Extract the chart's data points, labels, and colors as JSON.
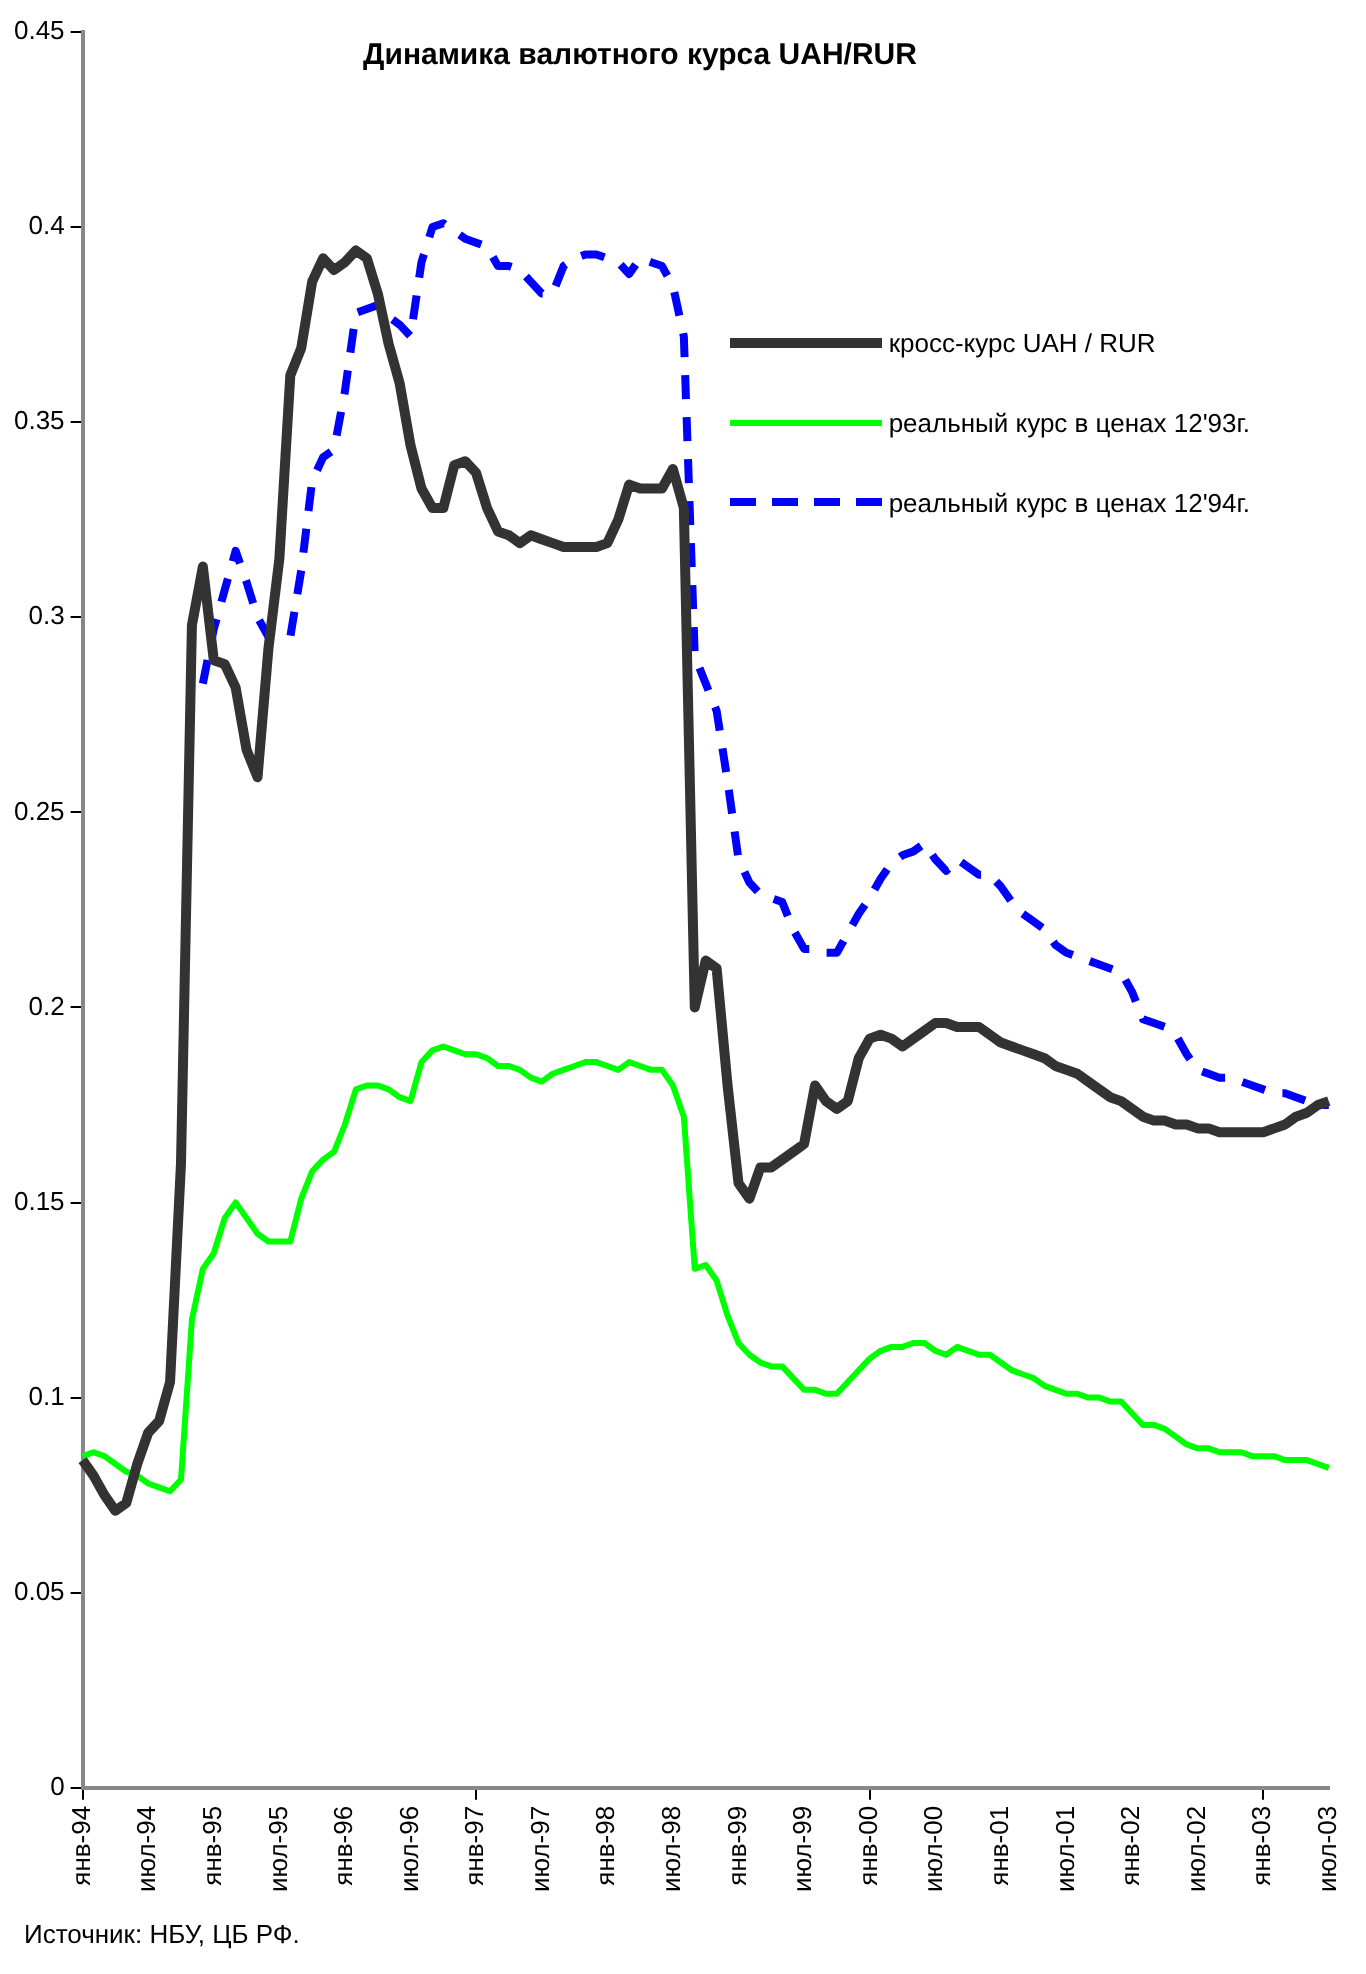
{
  "chart_data": {
    "type": "line",
    "title": "Динамика валютного курса UAH/RUR",
    "categories": [
      "янв-94",
      null,
      null,
      null,
      null,
      null,
      "июл-94",
      null,
      null,
      null,
      null,
      null,
      "янв-95",
      null,
      null,
      null,
      null,
      null,
      "июл-95",
      null,
      null,
      null,
      null,
      null,
      "янв-96",
      null,
      null,
      null,
      null,
      null,
      "июл-96",
      null,
      null,
      null,
      null,
      null,
      "янв-97",
      null,
      null,
      null,
      null,
      null,
      "июл-97",
      null,
      null,
      null,
      null,
      null,
      "янв-98",
      null,
      null,
      null,
      null,
      null,
      "июл-98",
      null,
      null,
      null,
      null,
      null,
      "янв-99",
      null,
      null,
      null,
      null,
      null,
      "июл-99",
      null,
      null,
      null,
      null,
      null,
      "янв-00",
      null,
      null,
      null,
      null,
      null,
      "июл-00",
      null,
      null,
      null,
      null,
      null,
      "янв-01",
      null,
      null,
      null,
      null,
      null,
      "июл-01",
      null,
      null,
      null,
      null,
      null,
      "янв-02",
      null,
      null,
      null,
      null,
      null,
      "июл-02",
      null,
      null,
      null,
      null,
      null,
      "янв-03",
      null,
      null,
      null,
      null,
      null,
      "июл-03"
    ],
    "series": [
      {
        "name": "кросс-курс UAH / RUR",
        "color": "#333333",
        "line_style": "solid",
        "values": [
          0.084,
          0.08,
          0.075,
          0.071,
          0.073,
          0.083,
          0.091,
          0.094,
          0.104,
          0.16,
          0.298,
          0.313,
          0.289,
          0.288,
          0.282,
          0.266,
          0.259,
          0.292,
          0.315,
          0.362,
          0.369,
          0.386,
          0.392,
          0.389,
          0.391,
          0.394,
          0.392,
          0.383,
          0.37,
          0.36,
          0.344,
          0.333,
          0.328,
          0.328,
          0.339,
          0.34,
          0.337,
          0.328,
          0.322,
          0.321,
          0.319,
          0.321,
          0.32,
          0.319,
          0.318,
          0.318,
          0.318,
          0.318,
          0.319,
          0.325,
          0.334,
          0.333,
          0.333,
          0.333,
          0.338,
          0.328,
          0.2,
          0.212,
          0.21,
          0.18,
          0.155,
          0.151,
          0.159,
          0.159,
          0.161,
          0.163,
          0.165,
          0.18,
          0.176,
          0.174,
          0.176,
          0.187,
          0.192,
          0.193,
          0.192,
          0.19,
          0.192,
          0.194,
          0.196,
          0.196,
          0.195,
          0.195,
          0.195,
          0.193,
          0.191,
          0.19,
          0.189,
          0.188,
          0.187,
          0.185,
          0.184,
          0.183,
          0.181,
          0.179,
          0.177,
          0.176,
          0.174,
          0.172,
          0.171,
          0.171,
          0.17,
          0.17,
          0.169,
          0.169,
          0.168,
          0.168,
          0.168,
          0.168,
          0.168,
          0.169,
          0.17,
          0.172,
          0.173,
          0.175,
          0.176
        ]
      },
      {
        "name": "реальный курс в ценах 12'93г.",
        "color": "#00ff00",
        "line_style": "solid",
        "values": [
          0.085,
          0.086,
          0.085,
          0.083,
          0.081,
          0.08,
          0.078,
          0.077,
          0.076,
          0.079,
          0.12,
          0.133,
          0.137,
          0.146,
          0.15,
          0.146,
          0.142,
          0.14,
          0.14,
          0.14,
          0.151,
          0.158,
          0.161,
          0.163,
          0.17,
          0.179,
          0.18,
          0.18,
          0.179,
          0.177,
          0.176,
          0.186,
          0.189,
          0.19,
          0.189,
          0.188,
          0.188,
          0.187,
          0.185,
          0.185,
          0.184,
          0.182,
          0.181,
          0.183,
          0.184,
          0.185,
          0.186,
          0.186,
          0.185,
          0.184,
          0.186,
          0.185,
          0.184,
          0.184,
          0.18,
          0.172,
          0.133,
          0.134,
          0.13,
          0.121,
          0.114,
          0.111,
          0.109,
          0.108,
          0.108,
          0.105,
          0.102,
          0.102,
          0.101,
          0.101,
          0.104,
          0.107,
          0.11,
          0.112,
          0.113,
          0.113,
          0.114,
          0.114,
          0.112,
          0.111,
          0.113,
          0.112,
          0.111,
          0.111,
          0.109,
          0.107,
          0.106,
          0.105,
          0.103,
          0.102,
          0.101,
          0.101,
          0.1,
          0.1,
          0.099,
          0.099,
          0.096,
          0.093,
          0.093,
          0.092,
          0.09,
          0.088,
          0.087,
          0.087,
          0.086,
          0.086,
          0.086,
          0.085,
          0.085,
          0.085,
          0.084,
          0.084,
          0.084,
          0.083,
          0.082
        ]
      },
      {
        "name": "реальный курс в ценах 12'94г.",
        "color": "#0000ff",
        "line_style": "dashed",
        "values": [
          null,
          null,
          null,
          null,
          null,
          null,
          null,
          null,
          null,
          null,
          null,
          0.283,
          0.297,
          0.307,
          0.317,
          0.309,
          0.3,
          0.295,
          0.295,
          0.295,
          0.312,
          0.335,
          0.341,
          0.343,
          0.358,
          0.378,
          0.379,
          0.38,
          0.377,
          0.375,
          0.372,
          0.391,
          0.4,
          0.401,
          0.399,
          0.397,
          0.396,
          0.395,
          0.39,
          0.39,
          0.389,
          0.386,
          0.383,
          0.383,
          0.39,
          0.392,
          0.393,
          0.393,
          0.392,
          0.391,
          0.388,
          0.392,
          0.391,
          0.39,
          0.385,
          0.372,
          0.29,
          0.283,
          0.276,
          0.258,
          0.238,
          0.232,
          0.229,
          0.228,
          0.227,
          0.22,
          0.215,
          0.215,
          0.214,
          0.214,
          0.219,
          0.224,
          0.228,
          0.233,
          0.237,
          0.239,
          0.24,
          0.242,
          0.238,
          0.235,
          0.238,
          0.236,
          0.234,
          0.234,
          0.231,
          0.227,
          0.224,
          0.222,
          0.22,
          0.216,
          0.214,
          0.213,
          0.212,
          0.211,
          0.21,
          0.209,
          0.204,
          0.197,
          0.196,
          0.195,
          0.193,
          0.188,
          0.184,
          0.183,
          0.182,
          0.182,
          0.181,
          0.18,
          0.179,
          0.178,
          0.178,
          0.177,
          0.176,
          0.175,
          0.175
        ]
      }
    ],
    "ylim": [
      0,
      0.45
    ],
    "yticks": [
      0,
      0.05,
      0.1,
      0.15,
      0.2,
      0.25,
      0.3,
      0.35,
      0.4,
      0.45
    ],
    "marker": "none",
    "legend": "right",
    "annotations": [
      "Источник: НБУ, ЦБ РФ."
    ]
  }
}
